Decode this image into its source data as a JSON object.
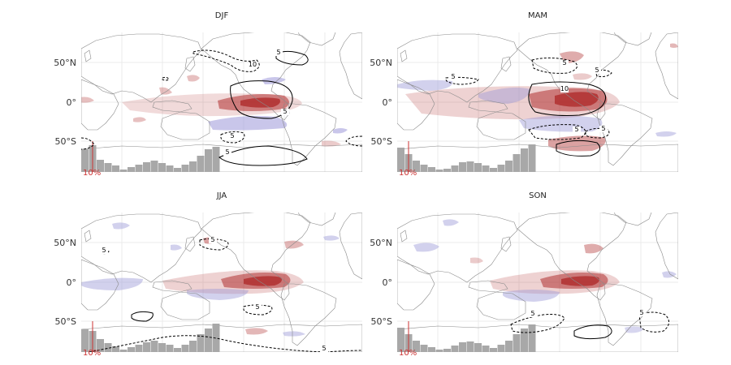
{
  "panels": [
    {
      "title": "DJF",
      "histogram": [
        28,
        33,
        15,
        11,
        8,
        3,
        6,
        9,
        12,
        14,
        11,
        8,
        5,
        9,
        13,
        20,
        28,
        31
      ],
      "percent_label": "10%",
      "contour_labels": [
        "5",
        "10",
        "5",
        "5",
        "5"
      ]
    },
    {
      "title": "MAM",
      "histogram": [
        30,
        22,
        14,
        9,
        6,
        3,
        4,
        8,
        12,
        13,
        11,
        8,
        5,
        9,
        14,
        22,
        29,
        34
      ],
      "percent_label": "10%",
      "contour_labels": [
        "5",
        "5",
        "5",
        "10",
        "5",
        "5"
      ]
    },
    {
      "title": "JJA",
      "histogram": [
        28,
        26,
        16,
        11,
        7,
        3,
        6,
        9,
        12,
        14,
        11,
        9,
        5,
        9,
        14,
        22,
        29,
        35
      ],
      "percent_label": "10%",
      "contour_labels": [
        "5",
        "5",
        "5",
        "5"
      ]
    },
    {
      "title": "SON",
      "histogram": [
        30,
        22,
        14,
        9,
        6,
        3,
        4,
        8,
        12,
        13,
        11,
        8,
        5,
        9,
        14,
        22,
        29,
        34
      ],
      "percent_label": "10%",
      "contour_labels": [
        "5",
        "5"
      ]
    }
  ],
  "lat_ticks": [
    "50°N",
    "0°",
    "50°S"
  ],
  "colors": {
    "positive": "#b03030",
    "negative": "#9c98d8",
    "contour": "#000000",
    "histogram": "#a8a8a8",
    "marker": "#cc3333",
    "coast": "#8a8a8a"
  }
}
